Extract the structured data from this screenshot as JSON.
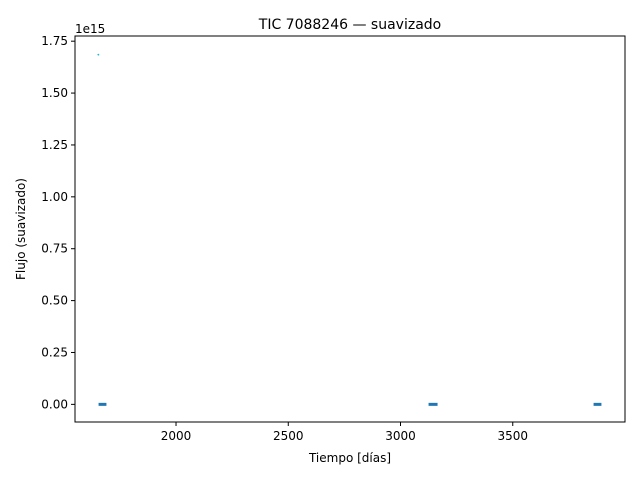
{
  "chart_data": {
    "type": "scatter",
    "title": "TIC 7088246 — suavizado",
    "xlabel": "Tiempo [días]",
    "ylabel": "Flujo (suavizado)",
    "y_offset_label": "1e15",
    "xlim": [
      1550,
      4000
    ],
    "ylim": [
      -0.085,
      1.775
    ],
    "y_multiplier": 1000000000000000.0,
    "xticks": [
      2000,
      2500,
      3000,
      3500
    ],
    "xtick_labels": [
      "2000",
      "2500",
      "3000",
      "3500"
    ],
    "yticks": [
      0,
      0.25,
      0.5,
      0.75,
      1.0,
      1.25,
      1.5,
      1.75
    ],
    "ytick_labels": [
      "0.00",
      "0.25",
      "0.50",
      "0.75",
      "1.00",
      "1.25",
      "1.50",
      "1.75"
    ],
    "grid": false,
    "colors": {
      "series": "#1f77b4",
      "outlier": "#17becf"
    },
    "segments": [
      {
        "x_start": 1655,
        "x_end": 1690,
        "y": 0.0
      },
      {
        "x_start": 3125,
        "x_end": 3165,
        "y": 0.0
      },
      {
        "x_start": 3860,
        "x_end": 3895,
        "y": 0.0
      }
    ],
    "outliers": [
      {
        "x": 1654,
        "y": 1.685
      }
    ]
  }
}
